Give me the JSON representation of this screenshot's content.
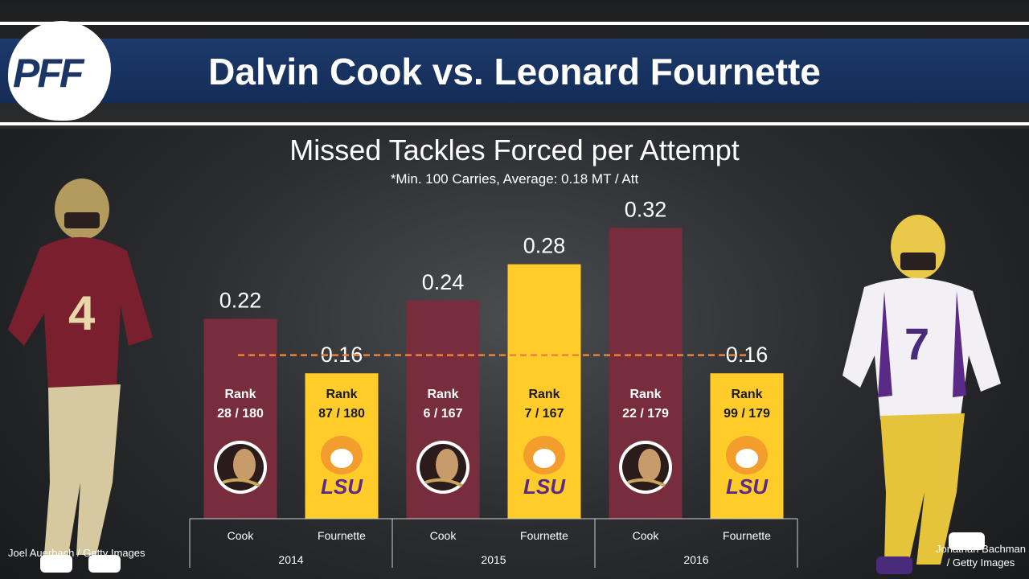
{
  "header": {
    "logo": "PFF",
    "title": "Dalvin Cook vs. Leonard Fournette"
  },
  "credits": {
    "left": "Joel Auerbach / Getty Images",
    "right": "Jonathan Bachman / Getty Images"
  },
  "colors": {
    "fsu": "#772d3c",
    "lsu": "#ffcc29",
    "average_line": "#e8833a",
    "title_bar": "#1b3564"
  },
  "chart_data": {
    "type": "bar",
    "title": "Missed Tackles Forced per Attempt",
    "subtitle": "*Min. 100 Carries, Average: 0.18 MT / Att",
    "average": 0.18,
    "groups": [
      "2014",
      "2015",
      "2016"
    ],
    "bars": [
      {
        "group": "2014",
        "category": "Cook",
        "value": 0.22,
        "label": "0.22",
        "rank": "28 / 180",
        "school": "FSU"
      },
      {
        "group": "2014",
        "category": "Fournette",
        "value": 0.16,
        "label": "0.16",
        "rank": "87 / 180",
        "school": "LSU"
      },
      {
        "group": "2015",
        "category": "Cook",
        "value": 0.24,
        "label": "0.24",
        "rank": "6 / 167",
        "school": "FSU"
      },
      {
        "group": "2015",
        "category": "Fournette",
        "value": 0.28,
        "label": "0.28",
        "rank": "7 / 167",
        "school": "LSU"
      },
      {
        "group": "2016",
        "category": "Cook",
        "value": 0.32,
        "label": "0.32",
        "rank": "22 / 179",
        "school": "FSU"
      },
      {
        "group": "2016",
        "category": "Fournette",
        "value": 0.16,
        "label": "0.16",
        "rank": "99 / 179",
        "school": "LSU"
      }
    ],
    "rank_word": "Rank",
    "grid": false
  }
}
